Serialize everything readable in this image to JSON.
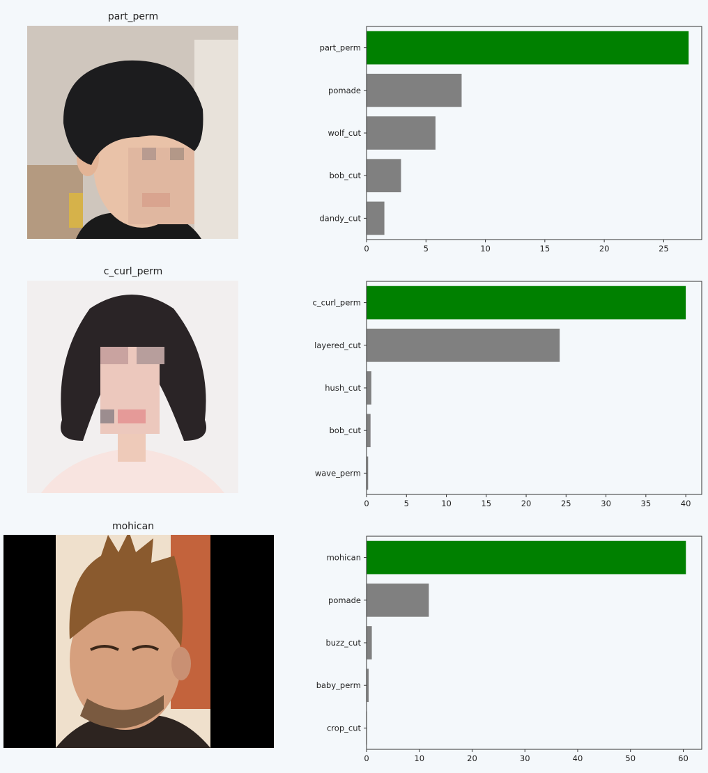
{
  "panels": [
    {
      "title": "part_perm",
      "image_subject": "person with short dark part perm hairstyle, face pixelated",
      "chart_data": {
        "type": "bar",
        "orientation": "horizontal",
        "categories": [
          "part_perm",
          "pomade",
          "wolf_cut",
          "bob_cut",
          "dandy_cut"
        ],
        "values": [
          27.1,
          8.0,
          5.8,
          2.9,
          1.5
        ],
        "xlim": [
          0,
          28.2
        ],
        "xticks": [
          0,
          5,
          10,
          15,
          20,
          25
        ],
        "highlight_index": 0
      }
    },
    {
      "title": "c_curl_perm",
      "image_subject": "person with shoulder-length dark c-curl perm hairstyle, face pixelated",
      "chart_data": {
        "type": "bar",
        "orientation": "horizontal",
        "categories": [
          "c_curl_perm",
          "layered_cut",
          "hush_cut",
          "bob_cut",
          "wave_perm"
        ],
        "values": [
          40.0,
          24.2,
          0.6,
          0.5,
          0.2
        ],
        "xlim": [
          0,
          42
        ],
        "xticks": [
          0,
          5,
          10,
          15,
          20,
          25,
          30,
          35,
          40
        ],
        "highlight_index": 0
      }
    },
    {
      "title": "mohican",
      "image_subject": "man with spiky mohican hairstyle",
      "chart_data": {
        "type": "bar",
        "orientation": "horizontal",
        "categories": [
          "mohican",
          "pomade",
          "buzz_cut",
          "baby_perm",
          "crop_cut"
        ],
        "values": [
          60.5,
          11.8,
          1.0,
          0.4,
          0.1
        ],
        "xlim": [
          0,
          63.5
        ],
        "xticks": [
          0,
          10,
          20,
          30,
          40,
          50,
          60
        ],
        "highlight_index": 0
      }
    }
  ],
  "colors": {
    "highlight": "#008000",
    "other": "#808080",
    "axis": "#333333",
    "text": "#222222"
  }
}
